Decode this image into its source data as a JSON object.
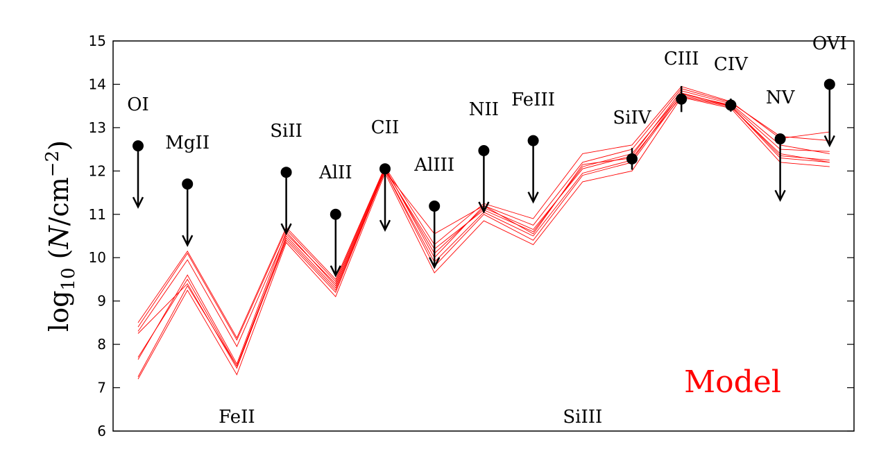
{
  "chart_data": {
    "type": "line",
    "ylabel": {
      "prefix": "log",
      "subscript": "10",
      "open": " (",
      "variable": "N",
      "unit_mid": "/cm",
      "exponent": "−2",
      "close": ")"
    },
    "ylim": [
      6,
      15
    ],
    "yticks": [
      "6",
      "7",
      "8",
      "9",
      "10",
      "11",
      "12",
      "13",
      "14",
      "15"
    ],
    "grid": false,
    "model_label": "Model",
    "model_color": "#ff0000",
    "observation_color": "#000000",
    "ions": [
      "OI",
      "MgII",
      "FeII",
      "SiII",
      "AlII",
      "CII",
      "AlIII",
      "NII",
      "FeIII",
      "SiIII",
      "SiIV",
      "CIII",
      "CIV",
      "NV",
      "OVI"
    ],
    "observations": [
      {
        "ion": "OI",
        "value": 12.58,
        "type": "upper_limit"
      },
      {
        "ion": "MgII",
        "value": 11.7,
        "type": "upper_limit"
      },
      {
        "ion": "SiII",
        "value": 11.97,
        "type": "upper_limit"
      },
      {
        "ion": "AlII",
        "value": 11.0,
        "type": "upper_limit"
      },
      {
        "ion": "CII",
        "value": 12.05,
        "type": "upper_limit"
      },
      {
        "ion": "AlIII",
        "value": 11.19,
        "type": "upper_limit"
      },
      {
        "ion": "NII",
        "value": 12.47,
        "type": "upper_limit"
      },
      {
        "ion": "FeIII",
        "value": 12.7,
        "type": "upper_limit"
      },
      {
        "ion": "SiIV",
        "value": 12.28,
        "type": "detection",
        "err": 0.25
      },
      {
        "ion": "CIII",
        "value": 13.66,
        "type": "detection",
        "err": 0.3
      },
      {
        "ion": "CIV",
        "value": 13.52,
        "type": "detection",
        "err": 0.15
      },
      {
        "ion": "NV",
        "value": 12.74,
        "type": "upper_limit"
      },
      {
        "ion": "OVI",
        "value": 14.0,
        "type": "upper_limit"
      }
    ],
    "series": [
      {
        "values": [
          8.3,
          9.95,
          7.95,
          10.55,
          9.4,
          12.05,
          10.1,
          11.15,
          10.65,
          12.05,
          12.35,
          13.85,
          13.55,
          12.6,
          12.4
        ]
      },
      {
        "values": [
          8.5,
          10.15,
          8.15,
          10.7,
          9.5,
          12.1,
          10.3,
          11.25,
          10.9,
          12.4,
          12.6,
          13.95,
          13.6,
          12.75,
          12.9
        ]
      },
      {
        "values": [
          7.7,
          9.5,
          7.5,
          10.4,
          9.2,
          12.0,
          9.8,
          11.0,
          10.4,
          11.9,
          12.2,
          13.75,
          13.5,
          12.3,
          12.2
        ]
      },
      {
        "values": [
          7.2,
          9.25,
          7.3,
          10.35,
          9.1,
          11.95,
          9.65,
          10.85,
          10.3,
          11.75,
          12.0,
          13.7,
          13.45,
          12.2,
          12.1
        ]
      },
      {
        "values": [
          8.25,
          9.4,
          7.45,
          10.45,
          9.25,
          12.0,
          9.9,
          11.05,
          10.5,
          11.95,
          12.25,
          13.8,
          13.5,
          12.35,
          12.25
        ]
      },
      {
        "values": [
          7.65,
          9.6,
          7.55,
          10.6,
          9.35,
          12.02,
          10.2,
          11.1,
          10.6,
          12.1,
          12.4,
          13.78,
          13.52,
          12.5,
          12.45
        ]
      },
      {
        "values": [
          7.25,
          9.35,
          7.5,
          10.5,
          9.3,
          12.0,
          10.55,
          11.2,
          10.75,
          12.2,
          12.5,
          13.9,
          13.58,
          12.8,
          12.7
        ]
      },
      {
        "values": [
          8.4,
          10.1,
          8.1,
          10.65,
          9.45,
          12.08,
          10.0,
          11.2,
          10.55,
          12.15,
          12.3,
          13.72,
          13.48,
          12.4,
          12.2
        ]
      }
    ]
  }
}
